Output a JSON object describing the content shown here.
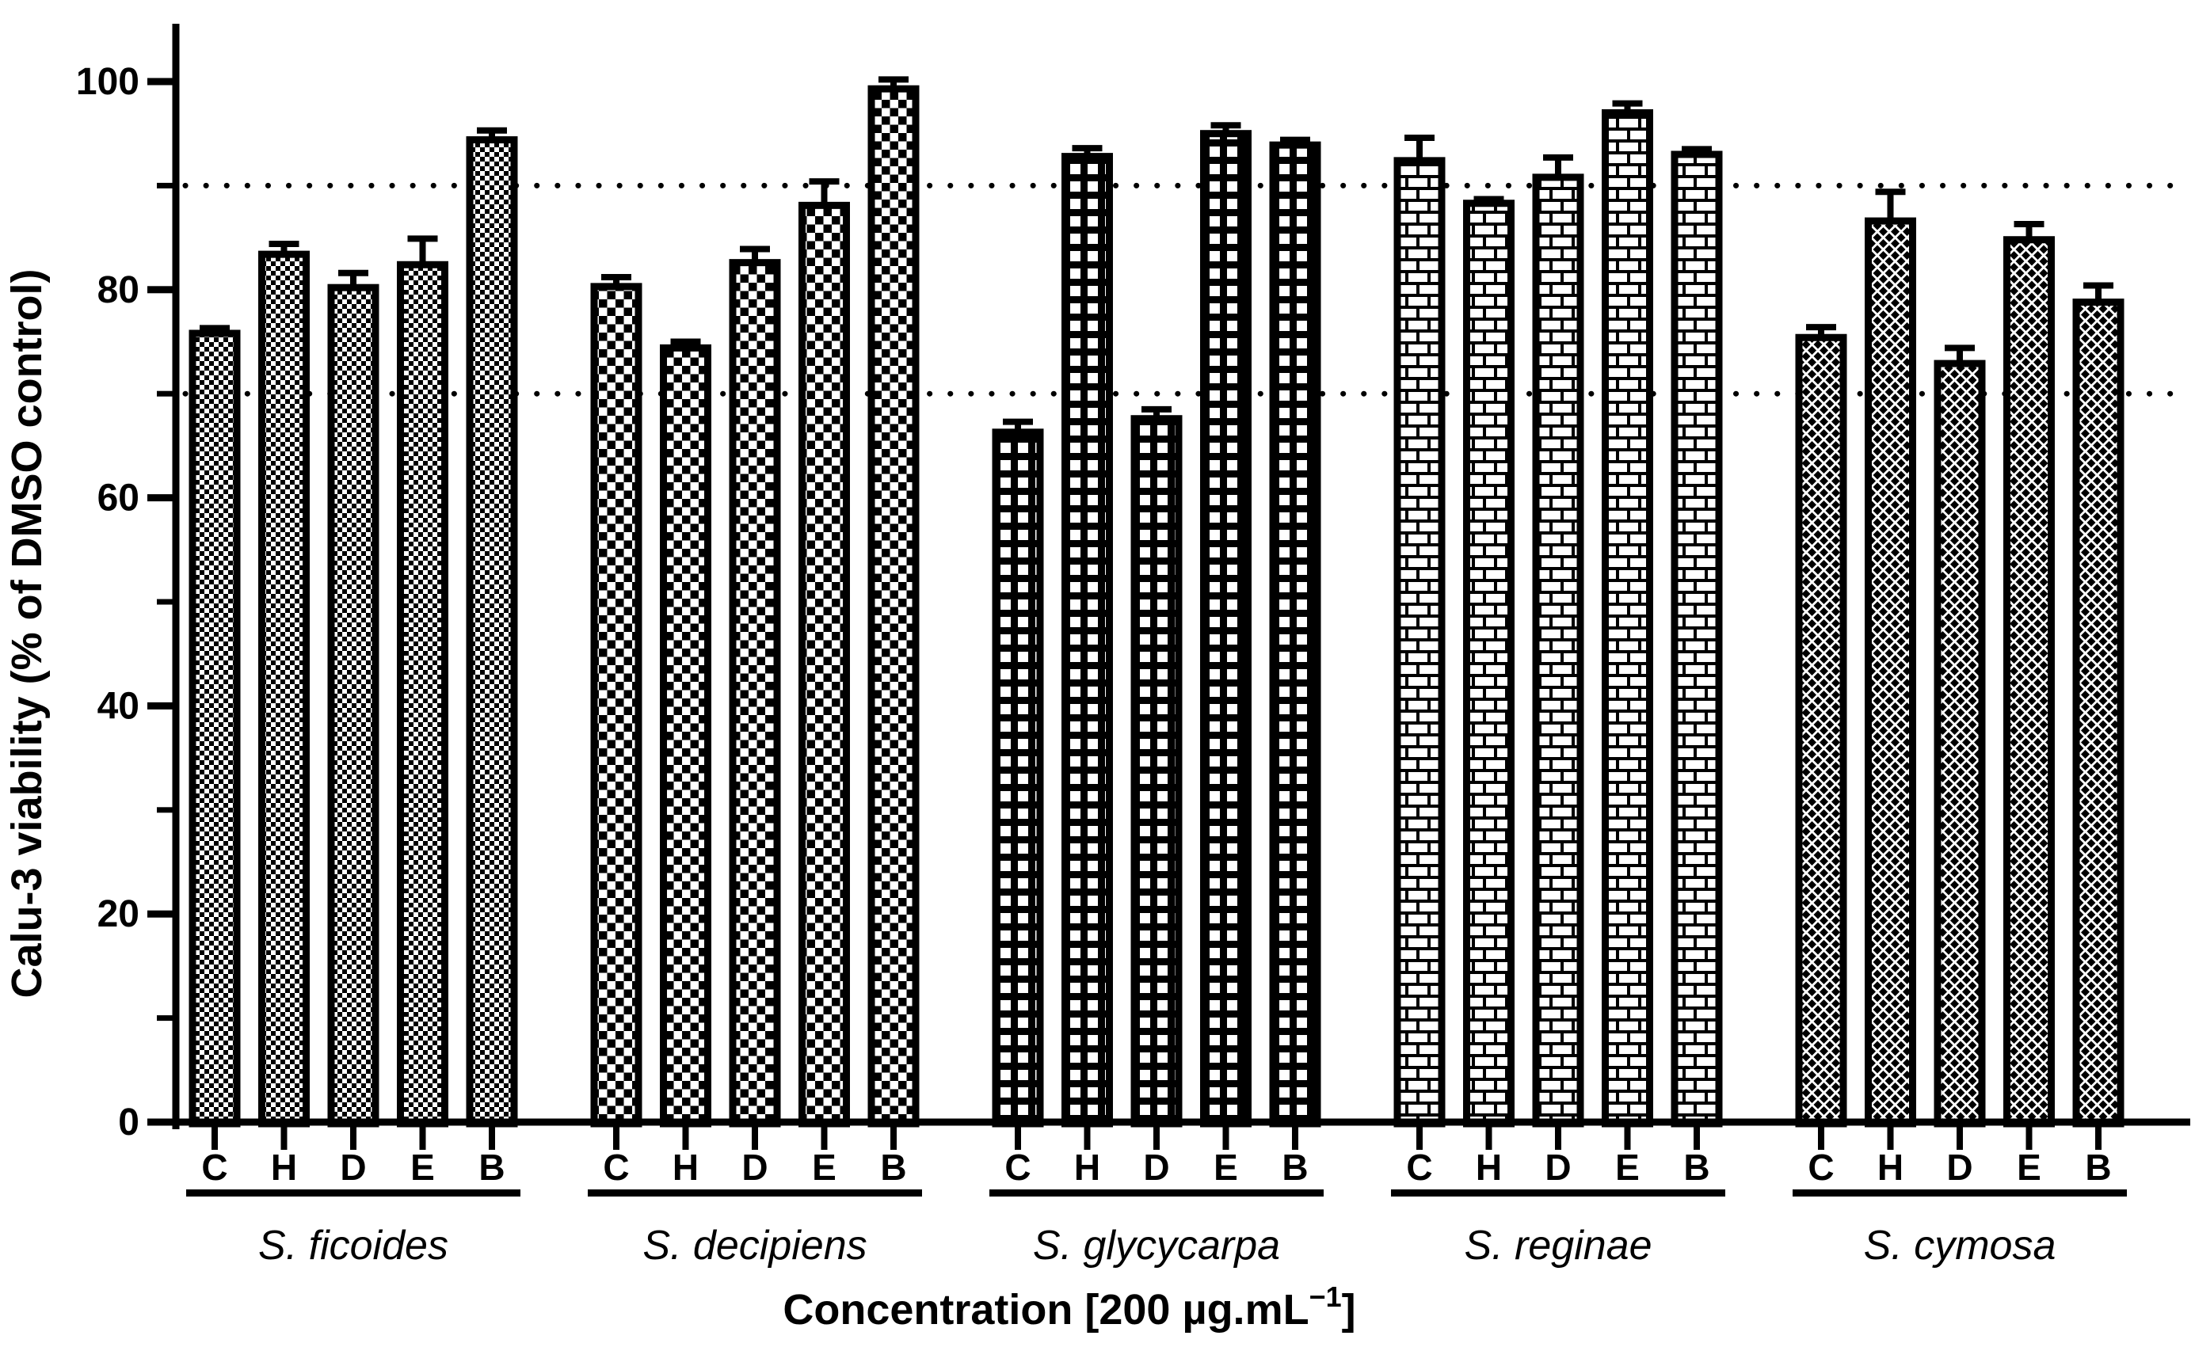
{
  "figure": {
    "background": "#ffffff",
    "foreground": "#000000",
    "y_axis": {
      "label": "Calu-3 viability (% of DMSO control)",
      "major_ticks": [
        0,
        20,
        40,
        60,
        80,
        100
      ],
      "minor_ticks": [
        10,
        30,
        50,
        70,
        90
      ]
    },
    "x_axis": {
      "title_prefix": "Concentration [200 µg.mL",
      "title_superscript": "−1",
      "title_suffix": "]"
    },
    "reference_lines": [
      90,
      70
    ]
  },
  "chart_data": {
    "type": "bar",
    "title": "",
    "xlabel": "Concentration [200 µg.mL⁻¹]",
    "ylabel": "Calu-3 viability (% of DMSO control)",
    "ylim": [
      0,
      100
    ],
    "grid": "off",
    "legend_position": "none",
    "error_bars": "upper SD/SEM caps",
    "categories": [
      "C",
      "H",
      "D",
      "E",
      "B"
    ],
    "series": [
      {
        "name": "S. ficoides",
        "pattern": "fine-checker",
        "values": [
          75.8,
          83.4,
          80.2,
          82.4,
          94.4
        ],
        "errors": [
          0.5,
          1.0,
          1.4,
          2.5,
          0.9
        ]
      },
      {
        "name": "S. decipiens",
        "pattern": "checker",
        "values": [
          80.3,
          74.4,
          82.6,
          88.1,
          99.3
        ],
        "errors": [
          0.9,
          0.6,
          1.3,
          2.3,
          0.9
        ]
      },
      {
        "name": "S. glycycarpa",
        "pattern": "grid",
        "values": [
          66.3,
          92.8,
          67.6,
          95.0,
          93.9
        ],
        "errors": [
          1.0,
          0.8,
          0.9,
          0.8,
          0.5
        ]
      },
      {
        "name": "S. reginae",
        "pattern": "brick",
        "values": [
          92.4,
          88.3,
          90.8,
          97.0,
          93.0
        ],
        "errors": [
          2.2,
          0.4,
          1.9,
          0.9,
          0.5
        ]
      },
      {
        "name": "S. cymosa",
        "pattern": "diagonal-crosshatch",
        "values": [
          75.4,
          86.6,
          72.9,
          84.8,
          78.8
        ],
        "errors": [
          1.0,
          2.8,
          1.5,
          1.5,
          1.6
        ]
      }
    ]
  }
}
